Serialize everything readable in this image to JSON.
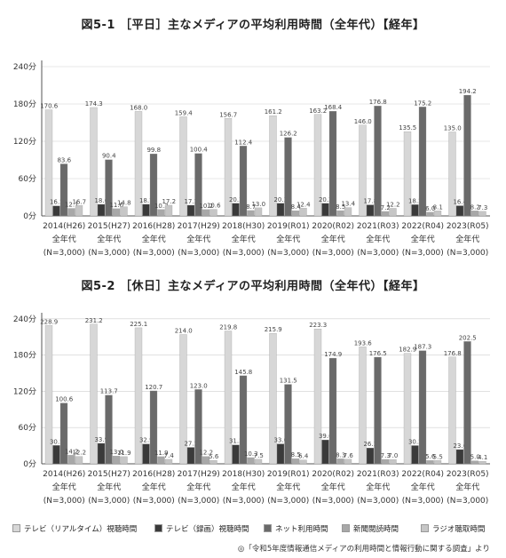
{
  "colors": [
    "#d7d7d7",
    "#3a3a3a",
    "#6a6a6a",
    "#a8a8a8",
    "#c6c6c6"
  ],
  "legend": [
    "テレビ（リアルタイム）視聴時間",
    "テレビ（録画）視聴時間",
    "ネット利用時間",
    "新聞閲読時間",
    "ラジオ聴取時間"
  ],
  "source": "◎「令和5年度情報通信メディアの利用時間と情報行動に関する調査」より",
  "chart_data": [
    {
      "type": "bar",
      "title": "図5-1 ［平日］主なメディアの平均利用時間（全年代）【経年】",
      "yticks": [
        "0分",
        "60分",
        "120分",
        "180分",
        "240分"
      ],
      "ylim": [
        0,
        250
      ],
      "categories": [
        [
          "2014(H26)",
          "全年代",
          "(N=3,000)"
        ],
        [
          "2015(H27)",
          "全年代",
          "(N=3,000)"
        ],
        [
          "2016(H28)",
          "全年代",
          "(N=3,000)"
        ],
        [
          "2017(H29)",
          "全年代",
          "(N=3,000)"
        ],
        [
          "2018(H30)",
          "全年代",
          "(N=3,000)"
        ],
        [
          "2019(R01)",
          "全年代",
          "(N=3,000)"
        ],
        [
          "2020(R02)",
          "全年代",
          "(N=3,000)"
        ],
        [
          "2021(R03)",
          "全年代",
          "(N=3,000)"
        ],
        [
          "2022(R04)",
          "全年代",
          "(N=3,000)"
        ],
        [
          "2023(R05)",
          "全年代",
          "(N=3,000)"
        ]
      ],
      "series": [
        {
          "name": "テレビ（リアルタイム）視聴時間",
          "values": [
            170.6,
            174.3,
            168.0,
            159.4,
            156.7,
            161.2,
            163.2,
            146.0,
            135.5,
            135.0
          ]
        },
        {
          "name": "テレビ（録画）視聴時間",
          "values": [
            16.2,
            18.6,
            18.7,
            17.2,
            20.3,
            20.3,
            20.2,
            17.8,
            18.2,
            16.4
          ]
        },
        {
          "name": "ネット利用時間",
          "values": [
            83.6,
            90.4,
            99.8,
            100.4,
            112.4,
            126.2,
            168.4,
            176.8,
            175.2,
            194.2
          ]
        },
        {
          "name": "新聞閲読時間",
          "values": [
            12.1,
            11.6,
            10.3,
            10.2,
            8.7,
            8.4,
            8.5,
            7.2,
            6.0,
            8.2
          ]
        },
        {
          "name": "ラジオ聴取時間",
          "values": [
            16.7,
            14.8,
            17.2,
            10.6,
            13.0,
            12.4,
            13.4,
            12.2,
            8.1,
            7.3
          ]
        }
      ]
    },
    {
      "type": "bar",
      "title": "図5-2 ［休日］主なメディアの平均利用時間（全年代）【経年】",
      "yticks": [
        "0分",
        "60分",
        "120分",
        "180分",
        "240分"
      ],
      "ylim": [
        0,
        250
      ],
      "categories": [
        [
          "2014(H26)",
          "全年代",
          "(N=3,000)"
        ],
        [
          "2015(H27)",
          "全年代",
          "(N=3,000)"
        ],
        [
          "2016(H28)",
          "全年代",
          "(N=3,000)"
        ],
        [
          "2017(H29)",
          "全年代",
          "(N=3,000)"
        ],
        [
          "2018(H30)",
          "全年代",
          "(N=3,000)"
        ],
        [
          "2019(R01)",
          "全年代",
          "(N=3,000)"
        ],
        [
          "2020(R02)",
          "全年代",
          "(N=3,000)"
        ],
        [
          "2021(R03)",
          "全年代",
          "(N=3,000)"
        ],
        [
          "2022(R04)",
          "全年代",
          "(N=3,000)"
        ],
        [
          "2023(R05)",
          "全年代",
          "(N=3,000)"
        ]
      ],
      "series": [
        {
          "name": "テレビ（リアルタイム）視聴時間",
          "values": [
            228.9,
            231.2,
            225.1,
            214.0,
            219.8,
            215.9,
            223.3,
            193.6,
            182.9,
            176.8
          ]
        },
        {
          "name": "テレビ（録画）視聴時間",
          "values": [
            30.5,
            33.9,
            32.9,
            27.2,
            31.3,
            33.0,
            39.6,
            26.3,
            30.2,
            23.6
          ]
        },
        {
          "name": "ネット利用時間",
          "values": [
            100.6,
            113.7,
            120.7,
            123.0,
            145.8,
            131.5,
            174.9,
            176.5,
            187.3,
            202.5
          ]
        },
        {
          "name": "新聞閲読時間",
          "values": [
            14.2,
            13.0,
            11.9,
            12.2,
            10.3,
            8.5,
            8.3,
            7.3,
            5.6,
            5.0
          ]
        },
        {
          "name": "ラジオ聴取時間",
          "values": [
            12.2,
            11.9,
            7.4,
            5.6,
            7.5,
            6.4,
            7.6,
            7.0,
            5.5,
            4.1
          ]
        }
      ]
    }
  ]
}
